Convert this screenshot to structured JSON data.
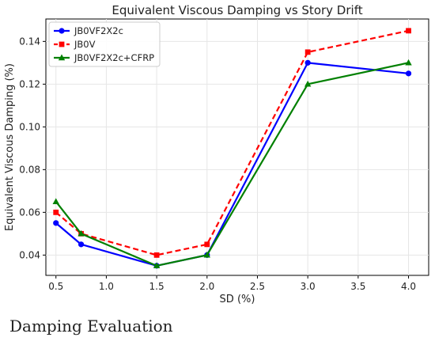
{
  "chart_data": {
    "type": "line",
    "title": "Equivalent Viscous Damping vs Story Drift",
    "xlabel": "SD (%)",
    "ylabel": "Equivalent Viscous Damping (%)",
    "xlim": [
      0.4,
      4.2
    ],
    "ylim": [
      0.0305,
      0.1505
    ],
    "x_ticks": [
      0.5,
      1.0,
      1.5,
      2.0,
      2.5,
      3.0,
      3.5,
      4.0
    ],
    "x_tick_labels": [
      "0.5",
      "1.0",
      "1.5",
      "2.0",
      "2.5",
      "3.0",
      "3.5",
      "4.0"
    ],
    "y_ticks": [
      0.04,
      0.06,
      0.08,
      0.1,
      0.12,
      0.14
    ],
    "y_tick_labels": [
      "0.04",
      "0.06",
      "0.08",
      "0.10",
      "0.12",
      "0.14"
    ],
    "grid": true,
    "legend_position": "top-left",
    "x": [
      0.5,
      0.75,
      1.5,
      2.0,
      3.0,
      4.0
    ],
    "series": [
      {
        "name": "JB0VF2X2c",
        "values": [
          0.055,
          0.045,
          0.035,
          0.04,
          0.13,
          0.125
        ],
        "color": "#0000ff",
        "marker": "circle",
        "linestyle": "solid"
      },
      {
        "name": "JB0V",
        "values": [
          0.06,
          0.05,
          0.04,
          0.045,
          0.135,
          0.145
        ],
        "color": "#ff0000",
        "marker": "square",
        "linestyle": "dashed"
      },
      {
        "name": "JB0VF2X2c+CFRP",
        "values": [
          0.065,
          0.05,
          0.035,
          0.04,
          0.12,
          0.13
        ],
        "color": "#008000",
        "marker": "triangle",
        "linestyle": "solid"
      }
    ]
  },
  "caption": "Damping Evaluation"
}
